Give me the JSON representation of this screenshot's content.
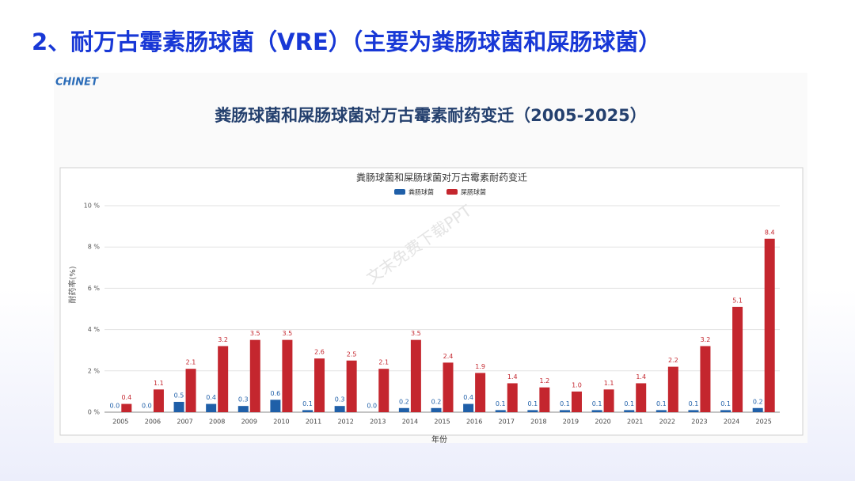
{
  "slide_title": "2、耐万古霉素肠球菌（VRE）（主要为粪肠球菌和屎肠球菌）",
  "logo": "CHINET",
  "figure_title": "粪肠球菌和屎肠球菌对万古霉素耐药变迁（2005-2025）",
  "watermark": "文末免费下载PPT",
  "chart_data": {
    "type": "bar",
    "title": "粪肠球菌和屎肠球菌对万古霉素耐药变迁",
    "x_label": "年份",
    "y_label": "耐药率(%)",
    "categories": [
      "2005",
      "2006",
      "2007",
      "2008",
      "2009",
      "2010",
      "2011",
      "2012",
      "2013",
      "2014",
      "2015",
      "2016",
      "2017",
      "2018",
      "2019",
      "2020",
      "2021",
      "2022",
      "2023",
      "2024",
      "2025"
    ],
    "series": [
      {
        "name": "粪肠球菌",
        "color": "#1f5fa8",
        "values": [
          0,
          0,
          0.5,
          0.4,
          0.3,
          0.6,
          0.1,
          0.3,
          0,
          0.2,
          0.2,
          0.4,
          0.1,
          0.1,
          0.1,
          0.1,
          0.1,
          0.1,
          0.1,
          0.1,
          0.2
        ],
        "value_labels": [
          "0.0",
          "0.0",
          "0.5",
          "0.4",
          "0.3",
          "0.6",
          "0.1",
          "0.3",
          "0.0",
          "0.2",
          "0.2",
          "0.4",
          "0.1",
          "0.1",
          "0.1",
          "0.1",
          "0.1",
          "0.1",
          "0.1",
          "0.1",
          "0.2"
        ]
      },
      {
        "name": "屎肠球菌",
        "color": "#c4262e",
        "values": [
          0.4,
          1.1,
          2.1,
          3.2,
          3.5,
          3.5,
          2.6,
          2.5,
          2.1,
          3.5,
          2.4,
          1.9,
          1.4,
          1.2,
          1.0,
          1.1,
          1.4,
          2.2,
          3.2,
          5.1,
          8.4
        ],
        "value_labels": [
          "0.4",
          "1.1",
          "2.1",
          "3.2",
          "3.5",
          "3.5",
          "2.6",
          "2.5",
          "2.1",
          "3.5",
          "2.4",
          "1.9",
          "1.4",
          "1.2",
          "1.0",
          "1.1",
          "1.4",
          "2.2",
          "3.2",
          "5.1",
          "8.4"
        ]
      }
    ],
    "ylim": [
      0,
      10
    ],
    "yticks": [
      {
        "value": 0,
        "label": "0 %"
      },
      {
        "value": 2,
        "label": "2 %"
      },
      {
        "value": 4,
        "label": "4 %"
      },
      {
        "value": 6,
        "label": "6 %"
      },
      {
        "value": 8,
        "label": "8 %"
      },
      {
        "value": 10,
        "label": "10 %"
      }
    ],
    "grid": true,
    "legend": "top"
  }
}
